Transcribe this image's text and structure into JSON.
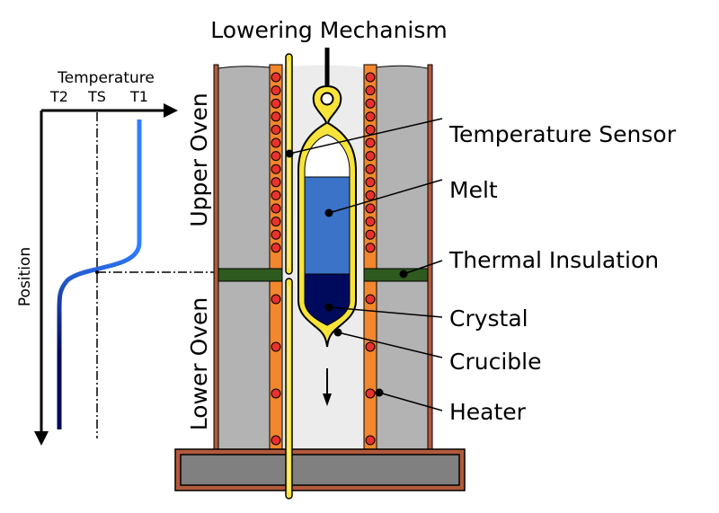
{
  "title": "Lowering Mechanism",
  "graph": {
    "y_axis_label": "Position",
    "x_axis_label": "Temperature",
    "tick_t2": "T2",
    "tick_ts": "TS",
    "tick_t1": "T1"
  },
  "ovens": {
    "upper": "Upper Oven",
    "lower": "Lower Oven"
  },
  "labels": {
    "sensor": "Temperature Sensor",
    "melt": "Melt",
    "insulation": "Thermal Insulation",
    "crystal": "Crystal",
    "crucible": "Crucible",
    "heater": "Heater"
  },
  "colors": {
    "wall": "#b3b3b3",
    "heater": "#f2872e",
    "coil": "#e8322d",
    "insulation": "#2f5a1f",
    "sensor": "#f7e33a",
    "melt": "#3a73c7",
    "crystal": "#000a5c",
    "chamber": "#ececec",
    "base": "#808080",
    "curve_hot": "#2f7fff",
    "curve_cold": "#000a5c"
  }
}
